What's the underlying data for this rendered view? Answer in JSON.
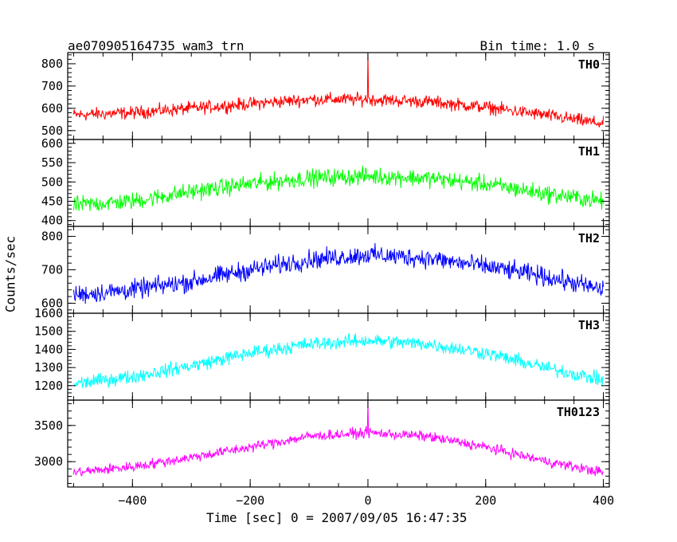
{
  "header": {
    "title": "ae070905164735_wam3_trn",
    "bin_time": "Bin time: 1.0 s"
  },
  "chart_data": {
    "type": "line",
    "title": "ae070905164735_wam3_trn",
    "xlabel": "Time [sec] 0 = 2007/09/05 16:47:35",
    "ylabel": "Counts/sec",
    "xlim": [
      -510,
      410
    ],
    "x_ticks": [
      -400,
      -200,
      0,
      200,
      400
    ],
    "grid": false,
    "panels": [
      {
        "name": "TH0",
        "color": "#ff0000",
        "ylim": [
          460,
          850
        ],
        "y_ticks": [
          500,
          600,
          700,
          800
        ],
        "profile": [
          {
            "x": -500,
            "y": 570
          },
          {
            "x": -400,
            "y": 580
          },
          {
            "x": -300,
            "y": 600
          },
          {
            "x": -200,
            "y": 620
          },
          {
            "x": -100,
            "y": 640
          },
          {
            "x": 0,
            "y": 640
          },
          {
            "x": 100,
            "y": 630
          },
          {
            "x": 200,
            "y": 605
          },
          {
            "x": 300,
            "y": 570
          },
          {
            "x": 400,
            "y": 530
          }
        ],
        "noise": 45,
        "spike": {
          "x": 0,
          "y": 850
        }
      },
      {
        "name": "TH1",
        "color": "#00ff00",
        "ylim": [
          385,
          610
        ],
        "y_ticks": [
          400,
          450,
          500,
          550,
          600
        ],
        "profile": [
          {
            "x": -500,
            "y": 440
          },
          {
            "x": -400,
            "y": 450
          },
          {
            "x": -300,
            "y": 475
          },
          {
            "x": -200,
            "y": 495
          },
          {
            "x": -100,
            "y": 510
          },
          {
            "x": 0,
            "y": 515
          },
          {
            "x": 100,
            "y": 510
          },
          {
            "x": 200,
            "y": 495
          },
          {
            "x": 300,
            "y": 470
          },
          {
            "x": 400,
            "y": 450
          }
        ],
        "noise": 35
      },
      {
        "name": "TH2",
        "color": "#0000ff",
        "ylim": [
          570,
          830
        ],
        "y_ticks": [
          600,
          700,
          800
        ],
        "profile": [
          {
            "x": -500,
            "y": 625
          },
          {
            "x": -400,
            "y": 640
          },
          {
            "x": -300,
            "y": 665
          },
          {
            "x": -200,
            "y": 700
          },
          {
            "x": -100,
            "y": 730
          },
          {
            "x": 0,
            "y": 745
          },
          {
            "x": 100,
            "y": 735
          },
          {
            "x": 200,
            "y": 710
          },
          {
            "x": 300,
            "y": 680
          },
          {
            "x": 400,
            "y": 640
          }
        ],
        "noise": 45
      },
      {
        "name": "TH3",
        "color": "#00ffff",
        "ylim": [
          1120,
          1600
        ],
        "y_ticks": [
          1200,
          1300,
          1400,
          1500,
          1600
        ],
        "profile": [
          {
            "x": -500,
            "y": 1210
          },
          {
            "x": -400,
            "y": 1250
          },
          {
            "x": -300,
            "y": 1310
          },
          {
            "x": -200,
            "y": 1380
          },
          {
            "x": -100,
            "y": 1430
          },
          {
            "x": 0,
            "y": 1450
          },
          {
            "x": 100,
            "y": 1430
          },
          {
            "x": 200,
            "y": 1380
          },
          {
            "x": 300,
            "y": 1300
          },
          {
            "x": 400,
            "y": 1230
          }
        ],
        "noise": 60
      },
      {
        "name": "TH0123",
        "color": "#ff00ff",
        "ylim": [
          2650,
          3850
        ],
        "y_ticks": [
          3000,
          3500
        ],
        "profile": [
          {
            "x": -500,
            "y": 2850
          },
          {
            "x": -400,
            "y": 2930
          },
          {
            "x": -300,
            "y": 3060
          },
          {
            "x": -200,
            "y": 3200
          },
          {
            "x": -100,
            "y": 3350
          },
          {
            "x": 0,
            "y": 3400
          },
          {
            "x": 100,
            "y": 3350
          },
          {
            "x": 200,
            "y": 3200
          },
          {
            "x": 300,
            "y": 3010
          },
          {
            "x": 400,
            "y": 2850
          }
        ],
        "noise": 110,
        "spike": {
          "x": 0,
          "y": 3840
        }
      }
    ]
  }
}
